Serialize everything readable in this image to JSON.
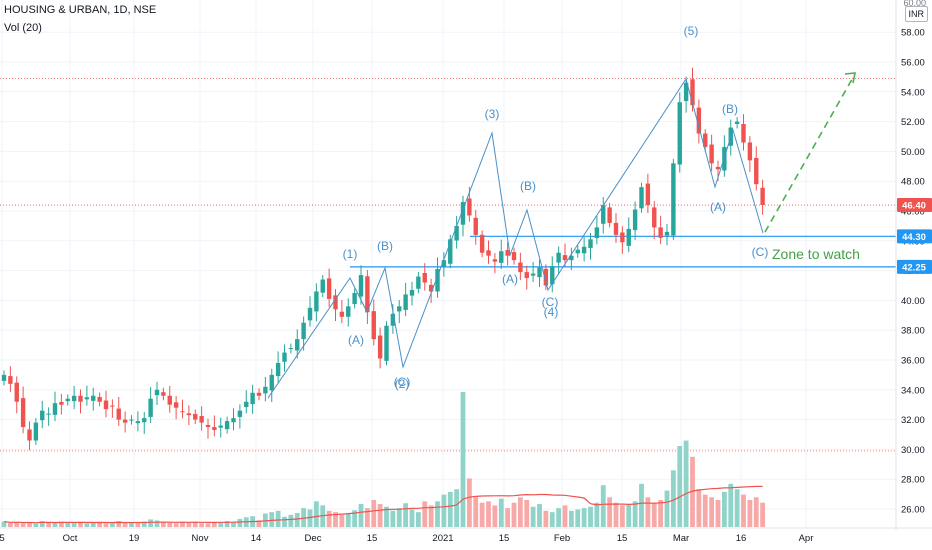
{
  "header": {
    "symbol_title": "HOUSING & URBAN, 1D, NSE",
    "indicator": "Vol (20)",
    "currency": "INR",
    "corner_label": "60.00"
  },
  "colors": {
    "up": "#26a69a",
    "down": "#ef5350",
    "vol_up": "#8fd3c9",
    "vol_down": "#f7a9a8",
    "wave_line": "#4a90c8",
    "level_line": "#2196f3",
    "target_arrow": "#4caf50",
    "zone_text": "#43a047",
    "ma_line": "#ef5350"
  },
  "chart_data": {
    "type": "candlestick",
    "y_ticks": [
      "26.00",
      "28.00",
      "30.00",
      "32.00",
      "34.00",
      "36.00",
      "38.00",
      "40.00",
      "42.00",
      "44.00",
      "46.00",
      "48.00",
      "50.00",
      "52.00",
      "54.00",
      "56.00",
      "58.00"
    ],
    "x_ticks": [
      "5",
      "Oct",
      "19",
      "Nov",
      "14",
      "Dec",
      "15",
      "2021",
      "15",
      "Feb",
      "15",
      "Mar",
      "16",
      "Apr"
    ],
    "ylim": [
      25.4,
      60
    ],
    "price_tags": [
      {
        "label": "46.40",
        "value": 46.4,
        "color": "#ef5350"
      },
      {
        "label": "44.30",
        "value": 44.3,
        "color": "#2196f3"
      },
      {
        "label": "42.25",
        "value": 42.25,
        "color": "#2196f3"
      }
    ],
    "horizontal_levels": [
      44.3,
      42.25
    ],
    "dotted_levels": [
      54.9,
      29.9
    ],
    "annotation": "Zone to watch",
    "wave_labels": [
      "(1)",
      "(B)",
      "(A)",
      "(C)",
      "(2)",
      "(3)",
      "(B)",
      "(A)",
      "(C)",
      "(4)",
      "(5)",
      "(B)",
      "(A)",
      "(C)"
    ],
    "ohlc_closes": [
      35.0,
      34.4,
      33.2,
      31.5,
      30.6,
      31.8,
      32.6,
      32.4,
      33.1,
      33.0,
      33.4,
      33.6,
      33.2,
      33.5,
      33.6,
      33.2,
      32.7,
      32.9,
      32.0,
      31.8,
      32.0,
      31.9,
      32.1,
      33.4,
      34.0,
      33.6,
      33.0,
      32.8,
      32.5,
      32.3,
      32.0,
      31.8,
      31.5,
      31.3,
      31.6,
      31.9,
      32.1,
      32.6,
      33.2,
      33.8,
      33.6,
      34.2,
      35.0,
      35.8,
      36.5,
      36.8,
      37.4,
      38.5,
      39.5,
      40.6,
      41.4,
      40.1,
      39.4,
      38.9,
      39.6,
      40.5,
      41.7,
      39.2,
      37.4,
      36.1,
      38.3,
      39.1,
      39.6,
      40.4,
      40.7,
      41.6,
      41.2,
      40.6,
      42.1,
      42.7,
      44.1,
      45.0,
      46.6,
      45.7,
      44.4,
      43.2,
      43.0,
      42.6,
      43.3,
      43.0,
      42.7,
      41.9,
      41.5,
      41.8,
      42.2,
      41.0,
      42.3,
      43.2,
      42.7,
      43.0,
      43.4,
      43.6,
      44.1,
      44.9,
      46.4,
      45.2,
      44.4,
      43.9,
      44.8,
      46.1,
      47.6,
      46.4,
      44.9,
      44.2,
      44.6,
      49.2,
      53.3,
      54.6,
      53.1,
      51.2,
      50.3,
      49.2,
      48.8,
      50.3,
      51.6,
      52.0,
      50.6,
      49.4,
      47.8,
      46.4
    ],
    "volumes": [
      0.2,
      0.15,
      0.18,
      0.14,
      0.16,
      0.13,
      0.22,
      0.18,
      0.15,
      0.2,
      0.16,
      0.17,
      0.19,
      0.14,
      0.15,
      0.18,
      0.13,
      0.16,
      0.22,
      0.15,
      0.17,
      0.14,
      0.2,
      0.28,
      0.24,
      0.18,
      0.16,
      0.14,
      0.17,
      0.16,
      0.19,
      0.14,
      0.13,
      0.15,
      0.17,
      0.22,
      0.18,
      0.3,
      0.36,
      0.4,
      0.25,
      0.5,
      0.55,
      0.6,
      0.38,
      0.45,
      0.52,
      0.7,
      0.65,
      0.95,
      0.8,
      0.6,
      0.55,
      0.45,
      0.5,
      0.62,
      0.85,
      0.7,
      1.0,
      0.85,
      0.75,
      0.6,
      0.7,
      0.88,
      0.65,
      0.55,
      0.95,
      0.8,
      0.95,
      1.2,
      1.3,
      1.4,
      5.0,
      1.8,
      1.1,
      0.9,
      0.95,
      0.8,
      1.05,
      0.7,
      0.9,
      1.1,
      1.0,
      0.75,
      0.85,
      0.6,
      0.55,
      0.7,
      0.8,
      0.6,
      0.65,
      0.7,
      0.75,
      0.9,
      1.55,
      1.1,
      0.9,
      0.8,
      0.85,
      0.95,
      1.6,
      1.1,
      0.9,
      1.0,
      1.35,
      2.1,
      3.0,
      3.2,
      2.6,
      1.4,
      1.2,
      1.1,
      1.0,
      1.3,
      1.6,
      1.4,
      1.2,
      1.0,
      1.1,
      0.9
    ]
  }
}
